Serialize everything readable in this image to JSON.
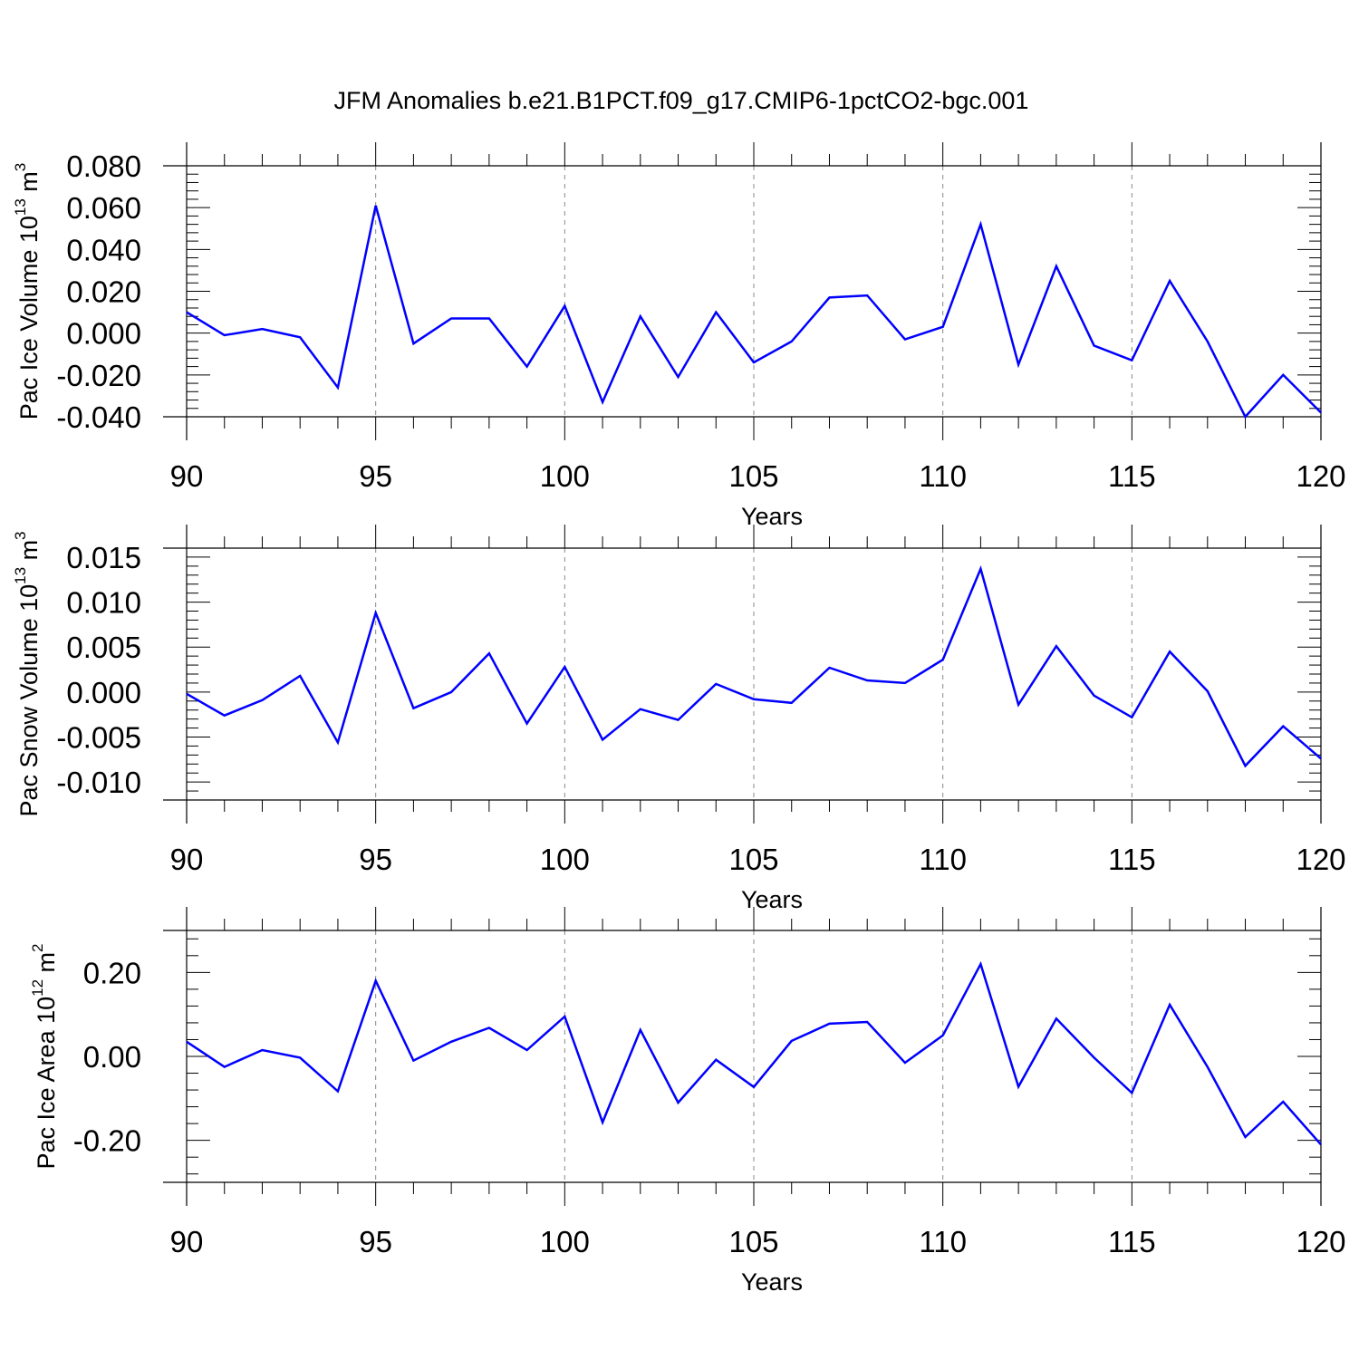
{
  "title": "JFM Anomalies b.e21.B1PCT.f09_g17.CMIP6-1pctCO2-bgc.001",
  "chart_data": [
    {
      "type": "line",
      "title": "",
      "ylabel": {
        "text": "Pac Ice Volume 10",
        "exponent": "13",
        "unit": " m",
        "unit_exponent": "3"
      },
      "xlabel": "Years",
      "xlim": [
        90,
        120
      ],
      "ylim": [
        -0.04,
        0.08
      ],
      "xticks": [
        90,
        95,
        100,
        105,
        110,
        115,
        120
      ],
      "xtick_labels": [
        "90",
        "95",
        "100",
        "105",
        "110",
        "115",
        "120"
      ],
      "yticks": [
        -0.04,
        -0.02,
        0.0,
        0.02,
        0.04,
        0.06,
        0.08
      ],
      "ytick_labels": [
        "-0.040",
        "-0.020",
        "0.000",
        "0.020",
        "0.040",
        "0.060",
        "0.080"
      ],
      "grid": "vertical dashed at major x ticks",
      "color": "#0000ff",
      "x": [
        90,
        91,
        92,
        93,
        94,
        95,
        96,
        97,
        98,
        99,
        100,
        101,
        102,
        103,
        104,
        105,
        106,
        107,
        108,
        109,
        110,
        111,
        112,
        113,
        114,
        115,
        116,
        117,
        118,
        119,
        120
      ],
      "y": [
        0.01,
        -0.001,
        0.002,
        -0.002,
        -0.026,
        0.061,
        -0.005,
        0.007,
        0.007,
        -0.016,
        0.013,
        -0.033,
        0.008,
        -0.021,
        0.01,
        -0.014,
        -0.004,
        0.017,
        0.018,
        -0.003,
        0.003,
        0.052,
        -0.015,
        0.032,
        -0.006,
        -0.013,
        0.025,
        -0.004,
        -0.04,
        -0.02,
        -0.038
      ]
    },
    {
      "type": "line",
      "title": "",
      "ylabel": {
        "text": "Pac Snow Volume 10",
        "exponent": "13",
        "unit": " m",
        "unit_exponent": "3"
      },
      "xlabel": "Years",
      "xlim": [
        90,
        120
      ],
      "ylim": [
        -0.012,
        0.016
      ],
      "xticks": [
        90,
        95,
        100,
        105,
        110,
        115,
        120
      ],
      "xtick_labels": [
        "90",
        "95",
        "100",
        "105",
        "110",
        "115",
        "120"
      ],
      "yticks": [
        -0.01,
        -0.005,
        0.0,
        0.005,
        0.01,
        0.015
      ],
      "ytick_labels": [
        "-0.010",
        "-0.005",
        "0.000",
        "0.005",
        "0.010",
        "0.015"
      ],
      "grid": "vertical dashed at major x ticks",
      "color": "#0000ff",
      "x": [
        90,
        91,
        92,
        93,
        94,
        95,
        96,
        97,
        98,
        99,
        100,
        101,
        102,
        103,
        104,
        105,
        106,
        107,
        108,
        109,
        110,
        111,
        112,
        113,
        114,
        115,
        116,
        117,
        118,
        119,
        120
      ],
      "y": [
        -0.0002,
        -0.0026,
        -0.0009,
        0.0018,
        -0.0056,
        0.0088,
        -0.0018,
        0.0,
        0.0043,
        -0.0035,
        0.0028,
        -0.0053,
        -0.0019,
        -0.0031,
        0.0009,
        -0.0008,
        -0.0012,
        0.0027,
        0.0013,
        0.001,
        0.0036,
        0.0137,
        -0.0014,
        0.0051,
        -0.0004,
        -0.0028,
        0.0045,
        0.0001,
        -0.0082,
        -0.0038,
        -0.0074
      ]
    },
    {
      "type": "line",
      "title": "",
      "ylabel": {
        "text": "Pac Ice Area 10",
        "exponent": "12",
        "unit": " m",
        "unit_exponent": "2"
      },
      "xlabel": "Years",
      "xlim": [
        90,
        120
      ],
      "ylim": [
        -0.3,
        0.3
      ],
      "xticks": [
        90,
        95,
        100,
        105,
        110,
        115,
        120
      ],
      "xtick_labels": [
        "90",
        "95",
        "100",
        "105",
        "110",
        "115",
        "120"
      ],
      "yticks": [
        -0.2,
        0.0,
        0.2
      ],
      "ytick_labels": [
        "-0.20",
        "0.00",
        "0.20"
      ],
      "grid": "vertical dashed at major x ticks",
      "color": "#0000ff",
      "x": [
        90,
        91,
        92,
        93,
        94,
        95,
        96,
        97,
        98,
        99,
        100,
        101,
        102,
        103,
        104,
        105,
        106,
        107,
        108,
        109,
        110,
        111,
        112,
        113,
        114,
        115,
        116,
        117,
        118,
        119,
        120
      ],
      "y": [
        0.035,
        -0.025,
        0.015,
        -0.003,
        -0.083,
        0.18,
        -0.01,
        0.035,
        0.068,
        0.015,
        0.095,
        -0.157,
        0.063,
        -0.11,
        -0.008,
        -0.073,
        0.037,
        0.078,
        0.082,
        -0.015,
        0.05,
        0.22,
        -0.072,
        0.09,
        -0.003,
        -0.087,
        0.123,
        -0.025,
        -0.192,
        -0.108,
        -0.21
      ]
    }
  ]
}
